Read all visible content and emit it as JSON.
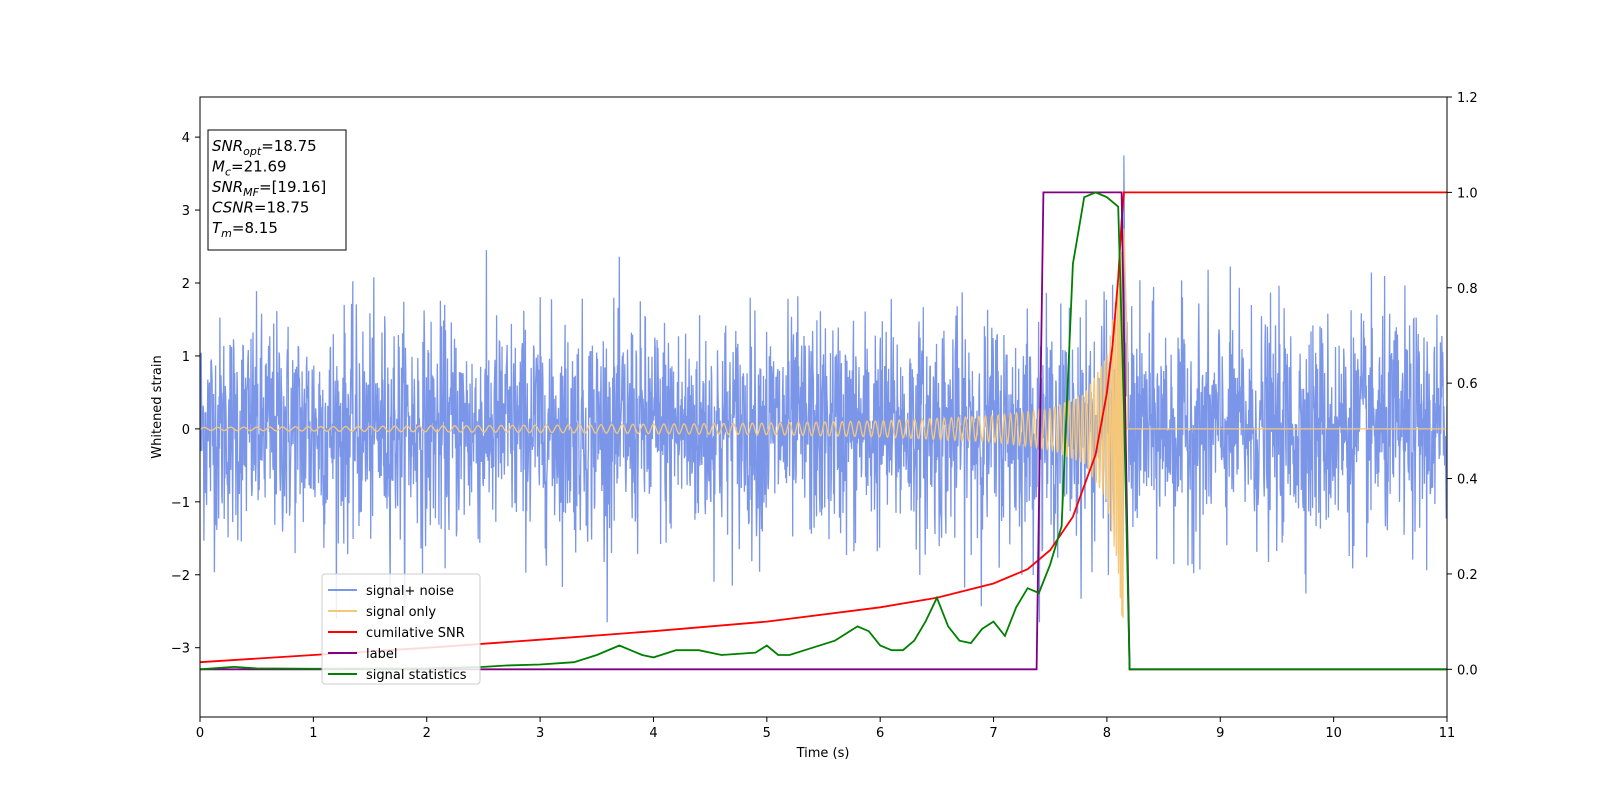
{
  "chart_data": {
    "type": "line",
    "xlabel": "Time (s)",
    "ylabel": "Whitened strain",
    "xlim": [
      0,
      11
    ],
    "ylim": [
      -3.95,
      4.55
    ],
    "y2lim": [
      -0.1,
      1.2
    ],
    "x_ticks": [
      "0",
      "1",
      "2",
      "3",
      "4",
      "5",
      "6",
      "7",
      "8",
      "9",
      "10",
      "11"
    ],
    "y_ticks": [
      "4",
      "3",
      "2",
      "1",
      "0",
      "−1",
      "−2",
      "−3"
    ],
    "y_tick_values": [
      4,
      3,
      2,
      1,
      0,
      -1,
      -2,
      -3
    ],
    "y2_ticks": [
      "1.2",
      "1.0",
      "0.8",
      "0.6",
      "0.4",
      "0.2",
      "0.0"
    ],
    "y2_tick_values": [
      1.2,
      1.0,
      0.8,
      0.6,
      0.4,
      0.2,
      0.0
    ],
    "info_box": [
      {
        "base": "SNR",
        "sub": "opt",
        "rest": "=18.75"
      },
      {
        "base": "M",
        "sub": "c",
        "rest": "=21.69"
      },
      {
        "base": "SNR",
        "sub": "MF",
        "rest": "=[19.16]"
      },
      {
        "base": "CSNR",
        "sub": "",
        "rest": "=18.75"
      },
      {
        "base": "T",
        "sub": "m",
        "rest": "=8.15"
      }
    ],
    "legend_position": "lower-left",
    "series": [
      {
        "name": "signal+ noise",
        "color": "#7b96e8",
        "axis": "left",
        "description": "whitened noise, approx. Gaussian, amplitude about ±2.5, spike to 3.75 near t=8.15",
        "noise_range": [
          -2.7,
          3.0
        ],
        "spike": {
          "x": 8.15,
          "y": 3.75
        }
      },
      {
        "name": "signal only",
        "color": "#f5c77a",
        "axis": "left",
        "description": "chirp oscillation, amplitude growing toward merger",
        "envelope": {
          "x": [
            0,
            3,
            5,
            6,
            7,
            7.5,
            7.8,
            8.0,
            8.1,
            8.15,
            8.2,
            11
          ],
          "amp": [
            0.02,
            0.05,
            0.08,
            0.11,
            0.18,
            0.28,
            0.48,
            1.0,
            2.0,
            2.9,
            0,
            0
          ]
        }
      },
      {
        "name": "cumilative SNR",
        "color": "#ff0000",
        "axis": "right",
        "x": [
          0,
          1,
          2,
          3,
          4,
          5,
          6,
          6.5,
          7,
          7.3,
          7.5,
          7.7,
          7.9,
          8.0,
          8.05,
          8.1,
          8.13,
          8.15,
          8.2,
          11
        ],
        "y": [
          0.015,
          0.03,
          0.045,
          0.062,
          0.08,
          0.1,
          0.13,
          0.15,
          0.18,
          0.21,
          0.25,
          0.32,
          0.45,
          0.58,
          0.68,
          0.82,
          0.94,
          1.0,
          1.0,
          1.0
        ]
      },
      {
        "name": "label",
        "color": "#800080",
        "axis": "right",
        "x": [
          0,
          7.38,
          7.44,
          8.13,
          8.2,
          11
        ],
        "y": [
          0.0,
          0.0,
          1.0,
          1.0,
          0.0,
          0.0
        ]
      },
      {
        "name": "signal statistics",
        "color": "#008000",
        "axis": "right",
        "x": [
          0,
          0.3,
          0.5,
          1.0,
          2.0,
          2.5,
          2.7,
          3.0,
          3.3,
          3.5,
          3.7,
          3.9,
          4.0,
          4.2,
          4.4,
          4.6,
          4.9,
          5.0,
          5.1,
          5.2,
          5.4,
          5.6,
          5.8,
          5.9,
          6.0,
          6.1,
          6.2,
          6.3,
          6.4,
          6.5,
          6.6,
          6.7,
          6.8,
          6.9,
          7.0,
          7.1,
          7.2,
          7.3,
          7.4,
          7.5,
          7.6,
          7.7,
          7.75,
          7.8,
          7.9,
          8.0,
          8.1,
          8.15,
          8.2,
          8.5,
          11
        ],
        "y": [
          0.0,
          0.005,
          0.002,
          0.001,
          0.002,
          0.005,
          0.008,
          0.01,
          0.015,
          0.03,
          0.05,
          0.03,
          0.025,
          0.04,
          0.04,
          0.03,
          0.035,
          0.05,
          0.03,
          0.03,
          0.045,
          0.06,
          0.09,
          0.08,
          0.05,
          0.04,
          0.04,
          0.06,
          0.1,
          0.15,
          0.09,
          0.06,
          0.055,
          0.085,
          0.1,
          0.07,
          0.13,
          0.17,
          0.16,
          0.22,
          0.3,
          0.85,
          0.92,
          0.99,
          1.0,
          0.99,
          0.97,
          0.55,
          0.0,
          0.0,
          0.0
        ]
      }
    ]
  }
}
